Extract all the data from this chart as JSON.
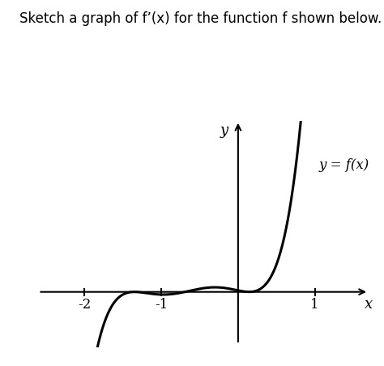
{
  "title": "Sketch a graph of f’(x) for the function f shown below.",
  "xlabel": "x",
  "ylabel": "y",
  "label": "y = f(x)",
  "background_color": "#ffffff",
  "curve_color": "#000000",
  "axis_color": "#000000",
  "xlim": [
    -2.7,
    1.7
  ],
  "ylim": [
    -0.75,
    2.3
  ],
  "figsize": [
    4.74,
    4.51
  ],
  "dpi": 100,
  "title_fontsize": 12,
  "tick_labels": [
    [
      -2,
      "-2"
    ],
    [
      -1,
      "-1"
    ],
    [
      1,
      "1"
    ]
  ],
  "curve_xmin": -2.45,
  "curve_xmax": 1.35
}
